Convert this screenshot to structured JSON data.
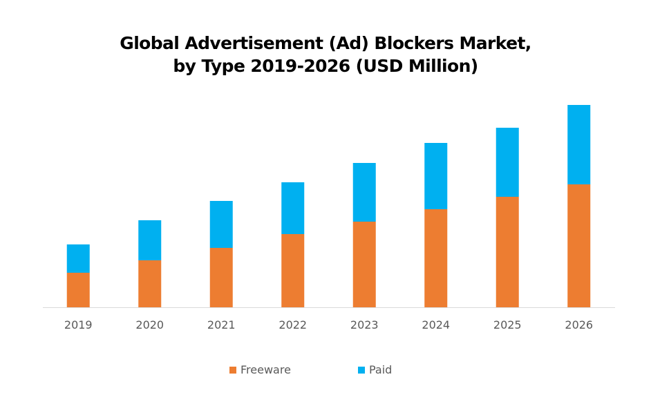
{
  "chart_data": {
    "type": "bar",
    "stacked": true,
    "title_line1": "Global Advertisement (Ad) Blockers Market,",
    "title_line2": "by Type 2019-2026 (USD Million)",
    "categories": [
      "2019",
      "2020",
      "2021",
      "2022",
      "2023",
      "2024",
      "2025",
      "2026"
    ],
    "series": [
      {
        "name": "Freeware",
        "color": "#ED7D31",
        "values": [
          50,
          68,
          86,
          106,
          124,
          142,
          160,
          178
        ]
      },
      {
        "name": "Paid",
        "color": "#00B0F0",
        "values": [
          41,
          58,
          68,
          75,
          85,
          96,
          100,
          115
        ]
      }
    ],
    "ylim": [
      0,
      300
    ],
    "y_axis_shown": false,
    "grid": false,
    "legend_position": "bottom",
    "xlabel": "",
    "ylabel": ""
  }
}
